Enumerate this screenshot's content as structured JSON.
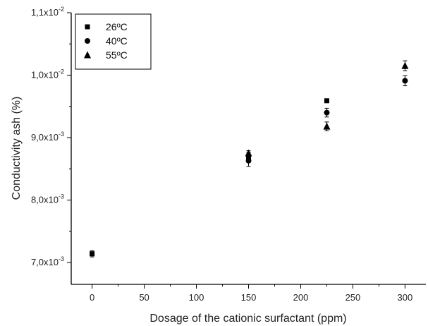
{
  "chart_data": {
    "type": "scatter",
    "title": "",
    "xlabel": "Dosage of the cationic surfactant (ppm)",
    "ylabel": "Conductivity ash (%)",
    "xlim": [
      -20,
      320
    ],
    "ylim": [
      0.00665,
      0.011
    ],
    "x_ticks": [
      0,
      50,
      100,
      150,
      200,
      250,
      300
    ],
    "y_ticks": [
      {
        "value": 0.007,
        "mantissa": "7,0x10",
        "exponent": "-3"
      },
      {
        "value": 0.008,
        "mantissa": "8,0x10",
        "exponent": "-3"
      },
      {
        "value": 0.009,
        "mantissa": "9,0x10",
        "exponent": "-3"
      },
      {
        "value": 0.01,
        "mantissa": "1,0x10",
        "exponent": "-2"
      },
      {
        "value": 0.011,
        "mantissa": "1,1x10",
        "exponent": "-2"
      }
    ],
    "legend_position": "top-left",
    "series": [
      {
        "name": "26ºC",
        "marker": "square",
        "color": "#000000",
        "points": [
          {
            "x": 0,
            "y": 0.00714,
            "err": 5e-05
          },
          {
            "x": 150,
            "y": 0.00869,
            "err": 7e-05
          },
          {
            "x": 225,
            "y": 0.00959,
            "err": 0
          }
        ]
      },
      {
        "name": "40ºC",
        "marker": "circle",
        "color": "#000000",
        "points": [
          {
            "x": 150,
            "y": 0.00863,
            "err": 9e-05
          },
          {
            "x": 225,
            "y": 0.0094,
            "err": 7e-05
          },
          {
            "x": 300,
            "y": 0.00991,
            "err": 8e-05
          }
        ]
      },
      {
        "name": "55ºC",
        "marker": "triangle",
        "color": "#000000",
        "points": [
          {
            "x": 150,
            "y": 0.00875,
            "err": 4e-05
          },
          {
            "x": 225,
            "y": 0.00918,
            "err": 7e-05
          },
          {
            "x": 300,
            "y": 0.01015,
            "err": 8e-05
          }
        ]
      }
    ]
  }
}
